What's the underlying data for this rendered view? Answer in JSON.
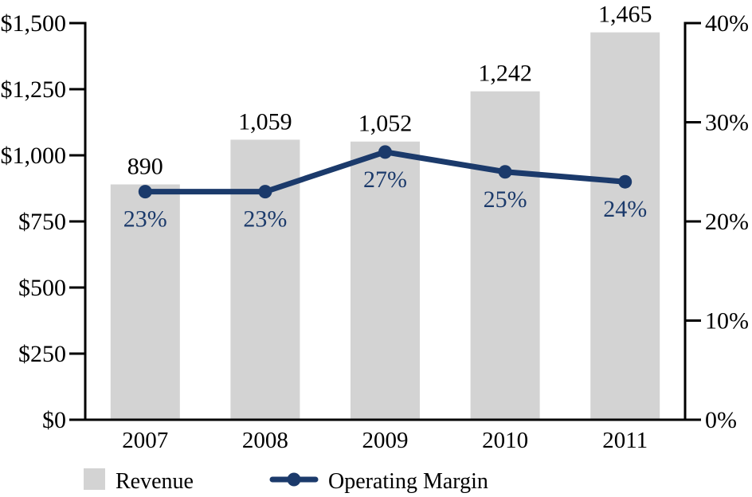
{
  "chart_data": {
    "type": "bar+line-combo",
    "title": "",
    "categories": [
      "2007",
      "2008",
      "2009",
      "2010",
      "2011"
    ],
    "series": [
      {
        "name": "Revenue",
        "type": "bar",
        "axis": "left",
        "values": [
          890,
          1059,
          1052,
          1242,
          1465
        ],
        "value_labels": [
          "890",
          "1,059",
          "1,052",
          "1,242",
          "1,465"
        ],
        "color": "#d3d3d3"
      },
      {
        "name": "Operating Margin",
        "type": "line",
        "axis": "right",
        "values": [
          23,
          23,
          27,
          25,
          24
        ],
        "value_labels": [
          "23%",
          "23%",
          "27%",
          "25%",
          "24%"
        ],
        "color": "#1b3a6b"
      }
    ],
    "left_axis": {
      "min": 0,
      "max": 1500,
      "tick_labels": [
        "$1,500",
        "$1,250",
        "$1,000",
        "$750",
        "$500",
        "$250",
        "$0"
      ]
    },
    "right_axis": {
      "min": 0,
      "max": 40,
      "tick_labels": [
        "40%",
        "30%",
        "20%",
        "10%",
        "0%"
      ]
    },
    "legend": [
      {
        "label": "Revenue",
        "swatch": "bar-swatch"
      },
      {
        "label": "Operating Margin",
        "swatch": "line-swatch"
      }
    ],
    "grid": false,
    "legend_position": "bottom"
  },
  "colors": {
    "bar": "#d3d3d3",
    "line": "#1b3a6b",
    "axis": "#000000",
    "bar_label_text": "#000000",
    "pct_label_text": "#1b3a6b",
    "legend_text": "#000000",
    "background": "#ffffff"
  }
}
